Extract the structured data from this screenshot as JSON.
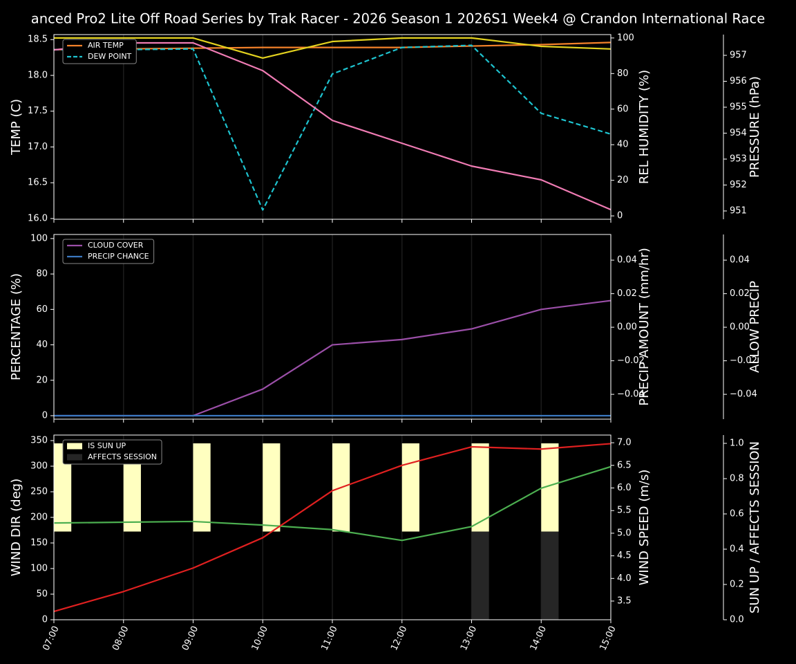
{
  "title": "anced Pro2 Lite Off Road Series by Trak Racer - 2026 Season 1 2026S1 Week4 @ Crandon International Race",
  "chart_data": [
    {
      "type": "line",
      "grid": true,
      "legend": "upper left",
      "ylabel": "TEMP (C)",
      "ylabel_color": "#ffffff",
      "ylim": [
        15.99,
        18.57
      ],
      "yticks": [
        {
          "value": 16,
          "label": "16.0"
        },
        16.5,
        {
          "value": 17,
          "label": "17.0"
        },
        17.5,
        {
          "value": 18,
          "label": "18.0"
        },
        18.5
      ],
      "y2label": "REL HUMIDITY (%)",
      "y2label_color": "#d9c81f",
      "y2lim": [
        -1.9,
        101.9
      ],
      "y2ticks": [
        0,
        20,
        40,
        60,
        80,
        100
      ],
      "y3label": "PRESSURE (hPa)",
      "y3label_color": "#f07cb4",
      "y3lim": [
        950.68,
        957.8
      ],
      "y3ticks": [
        951,
        952,
        953,
        954,
        955,
        956,
        957
      ],
      "series": [
        {
          "name": "AIR TEMP",
          "color": "#f5822a",
          "values": [
            18.36,
            18.37,
            18.38,
            18.39,
            18.39,
            18.39,
            18.41,
            18.43,
            18.46
          ]
        },
        {
          "name": "DEW POINT",
          "color": "#1ec3cf",
          "linestyle": "dashed",
          "values": [
            18.36,
            18.36,
            18.37,
            16.12,
            18.02,
            18.39,
            18.42,
            17.47,
            17.18
          ]
        },
        {
          "color": "#e3d21f",
          "axis": "y2",
          "values": [
            100,
            100,
            100,
            88.7,
            98,
            100,
            100,
            95.3,
            93.8
          ]
        },
        {
          "color": "#f07cb4",
          "axis": "y3",
          "values": [
            957.21,
            957.48,
            957.48,
            956.41,
            954.49,
            953.61,
            952.73,
            952.2,
            951.05
          ]
        }
      ]
    },
    {
      "type": "line",
      "grid": true,
      "legend": "upper left",
      "ylabel": "PERCENTAGE (%)",
      "ylabel_color": "#ffffff",
      "ylim": [
        -1.95,
        102.3
      ],
      "yticks": [
        0,
        20,
        40,
        60,
        80,
        100
      ],
      "y2label": "PRECIP AMOUNT (mm/hr)",
      "y2label_color": "#a0522d",
      "y2lim": [
        -0.0548,
        0.0553
      ],
      "y2ticks": [
        {
          "value": -0.04,
          "label": "−0.04"
        },
        {
          "value": -0.02,
          "label": "−0.02"
        },
        {
          "value": 0,
          "label": "0.00"
        },
        0.02,
        0.04
      ],
      "y3label": "ALLOW PRECIP",
      "y3label_color": "#ffffff",
      "y3lim": [
        -0.0548,
        0.0553
      ],
      "y3ticks": [
        {
          "value": -0.04,
          "label": "−0.04"
        },
        {
          "value": -0.02,
          "label": "−0.02"
        },
        {
          "value": 0,
          "label": "0.00"
        },
        0.02,
        0.04
      ],
      "series": [
        {
          "name": "CLOUD COVER",
          "color": "#9b4fa8",
          "values": [
            0,
            0,
            0,
            15,
            40,
            43,
            49,
            60,
            65
          ]
        },
        {
          "name": "PRECIP CHANCE",
          "color": "#3a78c0",
          "values": [
            0,
            0,
            0,
            0,
            0,
            0,
            0,
            0,
            0
          ]
        }
      ]
    },
    {
      "type": "combo",
      "grid": true,
      "legend": "upper left",
      "categories": [
        "07:00",
        "08:00",
        "09:00",
        "10:00",
        "11:00",
        "12:00",
        "13:00",
        "14:00",
        "15:00"
      ],
      "ylabel": "WIND DIR (deg)",
      "ylabel_color": "#4caf50",
      "ylim": [
        0,
        360.8
      ],
      "yticks": [
        0,
        50,
        100,
        150,
        200,
        250,
        300,
        350
      ],
      "y2label": "WIND SPEED (m/s)",
      "y2label_color": "#e02020",
      "y2lim": [
        3.087,
        7.17
      ],
      "y2ticks": [
        3.5,
        {
          "value": 4,
          "label": "4.0"
        },
        4.5,
        {
          "value": 5,
          "label": "5.0"
        },
        5.5,
        {
          "value": 6,
          "label": "6.0"
        },
        6.5,
        {
          "value": 7,
          "label": "7.0"
        }
      ],
      "y3label": "SUN UP / AFFECTS SESSION",
      "y3label_color": "#ffffff",
      "y3lim": [
        0,
        1.047
      ],
      "y3ticks": [
        {
          "value": 0,
          "label": "0.0"
        },
        0.2,
        0.4,
        0.6,
        0.8,
        {
          "value": 1,
          "label": "1.0"
        }
      ],
      "series": [
        {
          "name": "IS SUN UP",
          "type": "bar",
          "color": "#ffffc0",
          "axis": "y3",
          "bottom": 0.5,
          "values": [
            1,
            1,
            1,
            1,
            1,
            1,
            1,
            1,
            null
          ]
        },
        {
          "name": "AFFECTS SESSION",
          "type": "bar",
          "color": "#262626",
          "axis": "y3",
          "values": [
            0,
            0,
            0,
            0,
            0,
            0,
            0.5,
            0.5,
            null
          ]
        },
        {
          "color": "#4caf50",
          "values": [
            189,
            190.5,
            192,
            185,
            176,
            155,
            182,
            257,
            299
          ]
        },
        {
          "color": "#e02020",
          "axis": "y2",
          "values": [
            3.27,
            3.71,
            4.23,
            4.9,
            5.94,
            6.5,
            6.91,
            6.86,
            6.98
          ]
        }
      ]
    }
  ]
}
